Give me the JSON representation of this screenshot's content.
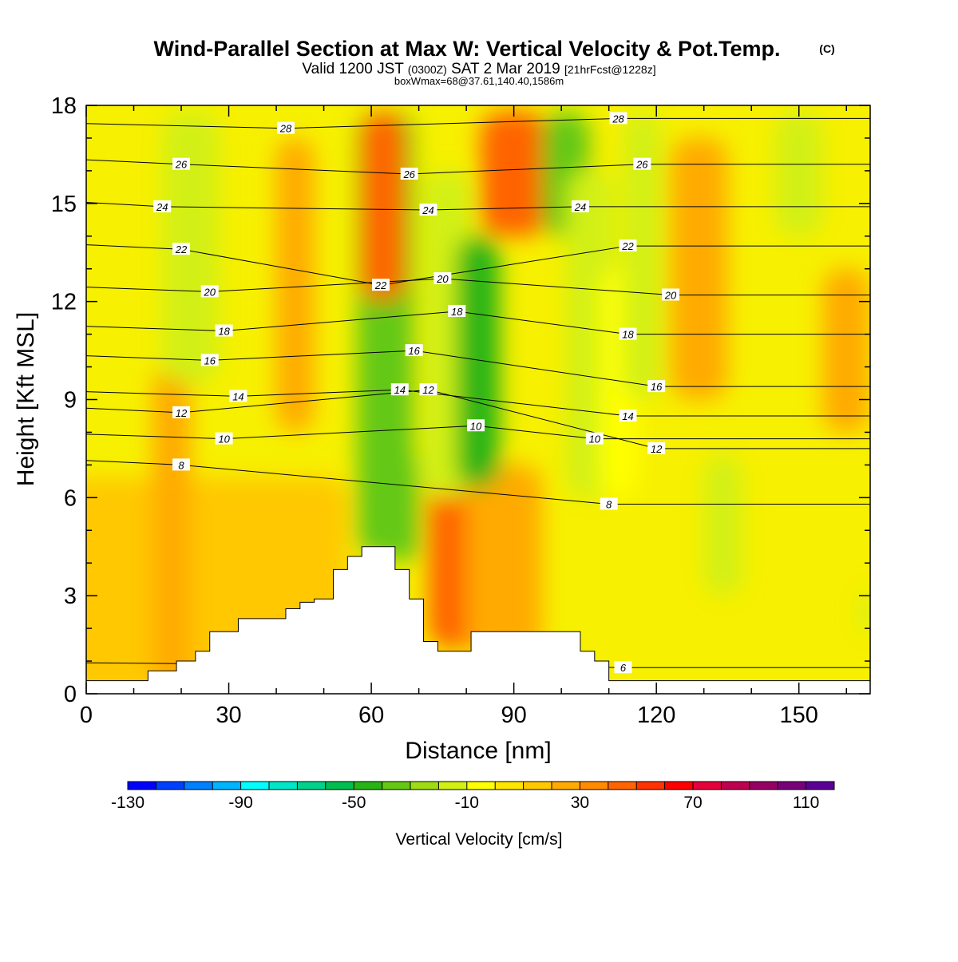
{
  "header": {
    "title": "Wind-Parallel Section at Max W: Vertical Velocity & Pot.Temp.",
    "copyright": "(C)",
    "valid_prefix": "Valid 1200 JST",
    "valid_utc": "(0300Z)",
    "valid_date": "SAT 2 Mar 2019",
    "valid_forecast": "[21hrFcst@1228z]",
    "box_info": "boxWmax=68@37.61,140.40,1586m"
  },
  "chart_data": {
    "type": "heatmap",
    "xlabel": "Distance [nm]",
    "ylabel": "Height [Kft MSL]",
    "xlim": [
      0,
      165
    ],
    "ylim": [
      0,
      18
    ],
    "x_ticks": [
      0,
      30,
      60,
      90,
      120,
      150
    ],
    "y_ticks": [
      0,
      3,
      6,
      9,
      12,
      15,
      18
    ],
    "grid": false,
    "fill_variable": "Vertical Velocity [cm/s]",
    "colorbar": {
      "label": "Vertical Velocity [cm/s]",
      "placement": "bottom",
      "min": -130,
      "max": 120,
      "step": 10,
      "tick_labels": [
        -130,
        -90,
        -50,
        -10,
        30,
        70,
        110
      ],
      "colors": [
        "#0000ff",
        "#0040ff",
        "#0080ff",
        "#00b4ff",
        "#00ffff",
        "#00e6c8",
        "#00d28c",
        "#00be50",
        "#28b414",
        "#64c814",
        "#a0dc14",
        "#d2f014",
        "#ffff00",
        "#ffe600",
        "#ffc800",
        "#ffaa00",
        "#ff8c00",
        "#ff6400",
        "#ff3200",
        "#ff0000",
        "#e6003c",
        "#be0050",
        "#960064",
        "#780078",
        "#5a0096"
      ]
    },
    "contour_variable": "Potential Temperature",
    "contour_labels": [
      {
        "value": "28",
        "x": 42,
        "y": 17.3
      },
      {
        "value": "28",
        "x": 112,
        "y": 17.6
      },
      {
        "value": "26",
        "x": 20,
        "y": 16.2
      },
      {
        "value": "26",
        "x": 68,
        "y": 15.9
      },
      {
        "value": "26",
        "x": 117,
        "y": 16.2
      },
      {
        "value": "24",
        "x": 16,
        "y": 14.9
      },
      {
        "value": "24",
        "x": 72,
        "y": 14.8
      },
      {
        "value": "24",
        "x": 104,
        "y": 14.9
      },
      {
        "value": "22",
        "x": 20,
        "y": 13.6
      },
      {
        "value": "22",
        "x": 62,
        "y": 12.5
      },
      {
        "value": "22",
        "x": 114,
        "y": 13.7
      },
      {
        "value": "20",
        "x": 26,
        "y": 12.3
      },
      {
        "value": "20",
        "x": 75,
        "y": 12.7
      },
      {
        "value": "20",
        "x": 123,
        "y": 12.2
      },
      {
        "value": "18",
        "x": 29,
        "y": 11.1
      },
      {
        "value": "18",
        "x": 78,
        "y": 11.7
      },
      {
        "value": "18",
        "x": 114,
        "y": 11.0
      },
      {
        "value": "16",
        "x": 26,
        "y": 10.2
      },
      {
        "value": "16",
        "x": 69,
        "y": 10.5
      },
      {
        "value": "16",
        "x": 120,
        "y": 9.4
      },
      {
        "value": "14",
        "x": 32,
        "y": 9.1
      },
      {
        "value": "14",
        "x": 66,
        "y": 9.3
      },
      {
        "value": "14",
        "x": 114,
        "y": 8.5
      },
      {
        "value": "12",
        "x": 20,
        "y": 8.6
      },
      {
        "value": "12",
        "x": 72,
        "y": 9.3
      },
      {
        "value": "12",
        "x": 120,
        "y": 7.5
      },
      {
        "value": "10",
        "x": 29,
        "y": 7.8
      },
      {
        "value": "10",
        "x": 82,
        "y": 8.2
      },
      {
        "value": "10",
        "x": 107,
        "y": 7.8
      },
      {
        "value": "8",
        "x": 20,
        "y": 7.0
      },
      {
        "value": "8",
        "x": 110,
        "y": 5.8
      },
      {
        "value": "6",
        "x": 113,
        "y": 0.8
      }
    ],
    "terrain_kft": [
      [
        0,
        0.4
      ],
      [
        13,
        0.7
      ],
      [
        19,
        1.0
      ],
      [
        23,
        1.3
      ],
      [
        26,
        1.9
      ],
      [
        32,
        2.3
      ],
      [
        42,
        2.6
      ],
      [
        45,
        2.8
      ],
      [
        48,
        2.9
      ],
      [
        52,
        3.8
      ],
      [
        55,
        4.2
      ],
      [
        58,
        4.5
      ],
      [
        63,
        4.5
      ],
      [
        65,
        3.8
      ],
      [
        68,
        2.9
      ],
      [
        71,
        1.6
      ],
      [
        74,
        1.3
      ],
      [
        81,
        1.9
      ],
      [
        101,
        1.9
      ],
      [
        104,
        1.3
      ],
      [
        107,
        1.0
      ],
      [
        110,
        0.4
      ],
      [
        165,
        0.4
      ]
    ]
  }
}
